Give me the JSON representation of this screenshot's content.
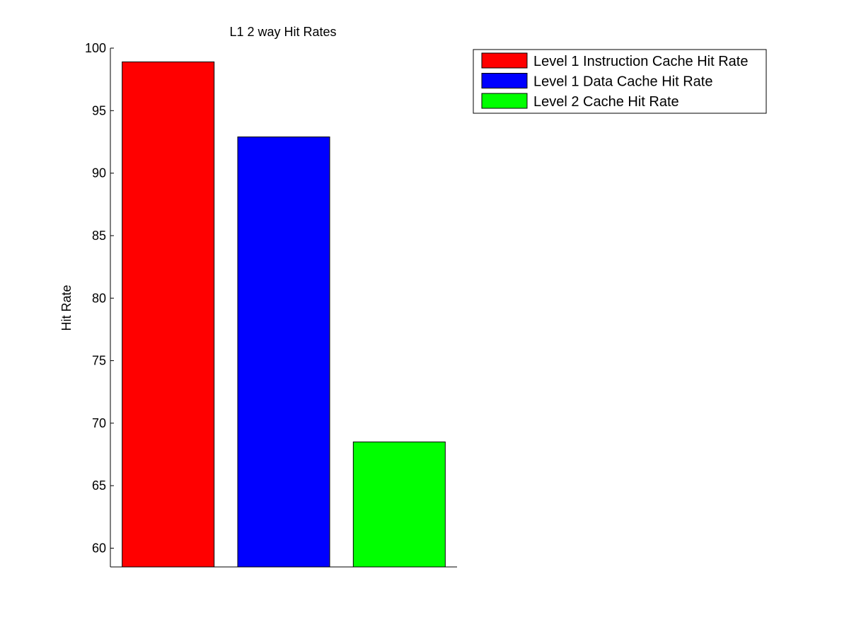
{
  "chart_data": {
    "type": "bar",
    "title": "L1 2 way Hit Rates",
    "xlabel": "",
    "ylabel": "Hit Rate",
    "ylim": [
      58.5,
      100
    ],
    "yticks": [
      60,
      65,
      70,
      75,
      80,
      85,
      90,
      95,
      100
    ],
    "grid": false,
    "legend_position": "top-right outside",
    "series": [
      {
        "name": "Level 1 Instruction Cache Hit Rate",
        "value": 98.9,
        "color": "#ff0000"
      },
      {
        "name": "Level 1 Data Cache Hit Rate",
        "value": 92.9,
        "color": "#0000ff"
      },
      {
        "name": "Level 2 Cache Hit Rate",
        "value": 68.5,
        "color": "#00ff00"
      }
    ]
  }
}
